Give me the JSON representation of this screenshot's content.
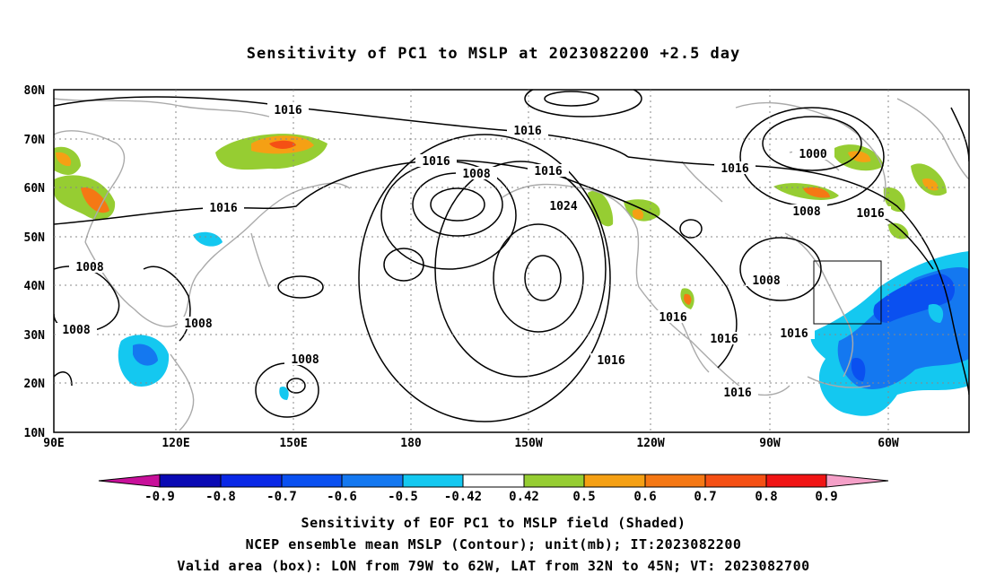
{
  "title": "Sensitivity of PC1 to MSLP at 2023082200 +2.5 day",
  "lat_labels": [
    "80N",
    "70N",
    "60N",
    "50N",
    "40N",
    "30N",
    "20N",
    "10N"
  ],
  "lon_labels": [
    "90E",
    "120E",
    "150E",
    "180",
    "150W",
    "120W",
    "90W",
    "60W"
  ],
  "contour_labels": [
    "1016",
    "1016",
    "1016",
    "1016",
    "1016",
    "1008",
    "1016",
    "1024",
    "1016",
    "1000",
    "1008",
    "1016",
    "1008",
    "1008",
    "1008",
    "1008",
    "1008",
    "1016",
    "1016",
    "1016",
    "1016"
  ],
  "colorbar": {
    "labels": [
      "-0.9",
      "-0.8",
      "-0.7",
      "-0.6",
      "-0.5",
      "-0.42",
      "0.42",
      "0.5",
      "0.6",
      "0.7",
      "0.8",
      "0.9"
    ],
    "colors": {
      "below": "#c8109a",
      "c1": "#0a0ab4",
      "c2": "#0a28e6",
      "c3": "#0a50f0",
      "c4": "#1478f0",
      "c5": "#14a0f0",
      "c6": "#14c8f0",
      "zero": "#ffffff",
      "p1": "#96cd32",
      "p2": "#f5a014",
      "p3": "#f57814",
      "p4": "#f55014",
      "p5": "#f01414",
      "above": "#f5a0c8"
    }
  },
  "captions": [
    "Sensitivity of EOF PC1 to MSLP field (Shaded)",
    "NCEP ensemble mean MSLP (Contour); unit(mb); IT:2023082200",
    "Valid area (box): LON from 79W to 62W, LAT from 32N to 45N; VT: 2023082700"
  ]
}
